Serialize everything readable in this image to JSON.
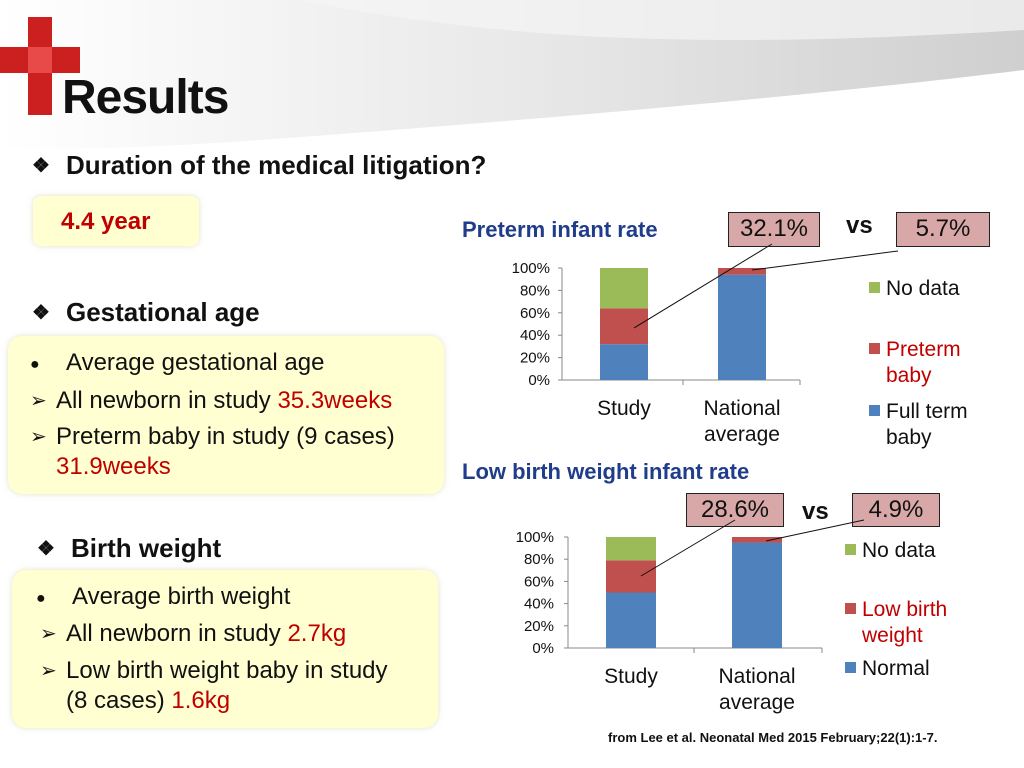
{
  "slide": {
    "title": "Results",
    "source": "from Lee et al. Neonatal Med 2015 February;22(1):1-7."
  },
  "litigation": {
    "heading": "Duration of the medical litigation?",
    "value": "4.4 year"
  },
  "gestational": {
    "heading": "Gestational age",
    "line1": "Average gestational age",
    "line2_text": "All newborn in study ",
    "line2_value": "35.3weeks",
    "line3_text": "Preterm baby in study (9 cases)",
    "line3_value": "31.9weeks"
  },
  "birthweight": {
    "heading": "Birth weight",
    "line1": "Average birth weight",
    "line2_text": "All newborn in study ",
    "line2_value": "2.7kg",
    "line3_text": "Low birth weight baby in study",
    "line3_text2": "(8 cases) ",
    "line3_value": "1.6kg"
  },
  "compare": {
    "preterm_study": "32.1%",
    "preterm_national": "5.7%",
    "lbw_study": "28.6%",
    "lbw_national": "4.9%",
    "vs": "vs"
  },
  "colors": {
    "blue": "#4f81bd",
    "red": "#c0504d",
    "green": "#9bbb59",
    "box_fill": "#ffffd2",
    "pct_fill": "#d8a8a8"
  },
  "chart_data": [
    {
      "type": "bar",
      "stacked": true,
      "title": "Preterm infant rate",
      "categories": [
        "Study",
        "National\naverage"
      ],
      "yticks": [
        "100%",
        "80%",
        "60%",
        "40%",
        "20%",
        "0%"
      ],
      "ylim": [
        0,
        100
      ],
      "series": [
        {
          "name": "Full term baby",
          "values": [
            32,
            94
          ]
        },
        {
          "name": "Preterm baby",
          "values": [
            32,
            6
          ]
        },
        {
          "name": "No data",
          "values": [
            36,
            0
          ]
        }
      ],
      "legend": [
        "No data",
        "Preterm baby",
        "Full term baby"
      ]
    },
    {
      "type": "bar",
      "stacked": true,
      "title": "Low birth weight infant rate",
      "categories": [
        "Study",
        "National\naverage"
      ],
      "yticks": [
        "100%",
        "80%",
        "60%",
        "40%",
        "20%",
        "0%"
      ],
      "ylim": [
        0,
        100
      ],
      "series": [
        {
          "name": "Normal",
          "values": [
            50,
            95
          ]
        },
        {
          "name": "Low birth weight",
          "values": [
            29,
            5
          ]
        },
        {
          "name": "No data",
          "values": [
            21,
            0
          ]
        }
      ],
      "legend": [
        "No data",
        "Low birth weight",
        "Normal"
      ]
    }
  ]
}
